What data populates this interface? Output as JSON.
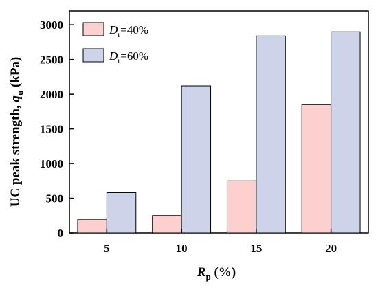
{
  "chart_data": {
    "type": "bar",
    "categories": [
      "5",
      "10",
      "15",
      "20"
    ],
    "series": [
      {
        "name_main": "D",
        "name_sub": "r",
        "name_rest": "=40%",
        "color": "#fdd0d0",
        "values": [
          190,
          250,
          750,
          1850
        ]
      },
      {
        "name_main": "D",
        "name_sub": "r",
        "name_rest": "=60%",
        "color": "#cdd3e8",
        "values": [
          580,
          2120,
          2840,
          2900
        ]
      }
    ],
    "xlabel": {
      "main": "R",
      "sub": "p",
      "rest": " (%)"
    },
    "ylabel": {
      "main": "UC peak strength, ",
      "var": "q",
      "sub": "u",
      "rest": " (kPa)"
    },
    "ylim": [
      0,
      3200
    ],
    "yticks": [
      0,
      500,
      1000,
      1500,
      2000,
      2500,
      3000
    ],
    "grid": false,
    "legend_position": "top-left",
    "bar_edge_color": "#000000"
  }
}
